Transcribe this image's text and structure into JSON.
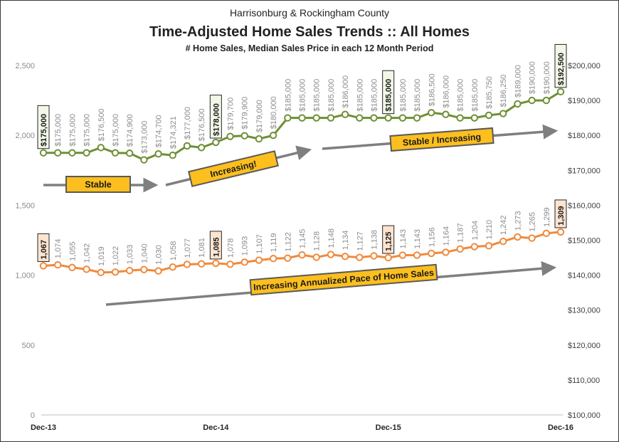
{
  "header": {
    "supertitle": "Harrisonburg & Rockingham County",
    "title": "Time-Adjusted Home Sales Trends  ::  All Homes",
    "subtitle": "# Home Sales, Median Sales Price in each 12 Month Period"
  },
  "chart_data": {
    "type": "line",
    "title": "Time-Adjusted Home Sales Trends  ::  All Homes",
    "subtitle": "# Home Sales, Median Sales Price in each 12 Month Period",
    "x_tick_labels": [
      "Dec-13",
      "Dec-14",
      "Dec-15",
      "Dec-16"
    ],
    "x_tick_index": [
      0,
      12,
      24,
      36
    ],
    "left_axis": {
      "min": 0,
      "max": 2500,
      "ticks": [
        0,
        500,
        1000,
        1500,
        2000,
        2500
      ],
      "tick_labels": [
        "0",
        "500",
        "1,000",
        "1,500",
        "2,000",
        "2,500"
      ]
    },
    "right_axis": {
      "min": 100000,
      "max": 200000,
      "ticks": [
        100000,
        110000,
        120000,
        130000,
        140000,
        150000,
        160000,
        170000,
        180000,
        190000,
        200000
      ],
      "tick_labels": [
        "$100,000",
        "$110,000",
        "$120,000",
        "$130,000",
        "$140,000",
        "$150,000",
        "$160,000",
        "$170,000",
        "$180,000",
        "$190,000",
        "$200,000"
      ]
    },
    "grid": false,
    "series": [
      {
        "axis": "right",
        "color": "#6f8f35",
        "values": [
          175000,
          175000,
          175000,
          175000,
          176500,
          175000,
          174900,
          173000,
          174700,
          174321,
          177000,
          176500,
          178000,
          179700,
          179900,
          179000,
          180000,
          185000,
          185000,
          185000,
          185000,
          186000,
          185000,
          185000,
          185000,
          185000,
          185000,
          186500,
          186000,
          185000,
          185000,
          185750,
          186250,
          189000,
          190000,
          190000,
          192500
        ],
        "labels": [
          "$175,000",
          "$175,000",
          "$175,000",
          "$175,000",
          "$176,500",
          "$175,000",
          "$174,900",
          "$173,000",
          "$174,700",
          "$174,321",
          "$177,000",
          "$176,500",
          "$178,000",
          "$179,700",
          "$179,900",
          "$179,000",
          "$180,000",
          "$185,000",
          "$185,000",
          "$185,000",
          "$185,000",
          "$186,000",
          "$185,000",
          "$185,000",
          "$185,000",
          "$185,000",
          "$185,000",
          "$186,500",
          "$186,000",
          "$185,000",
          "$185,000",
          "$185,750",
          "$186,250",
          "$189,000",
          "$190,000",
          "$190,000",
          "$192,500"
        ],
        "highlight_index": [
          0,
          12,
          24,
          36
        ]
      },
      {
        "axis": "left",
        "color": "#f08a3c",
        "values": [
          1067,
          1074,
          1055,
          1042,
          1019,
          1022,
          1033,
          1040,
          1030,
          1058,
          1077,
          1081,
          1085,
          1078,
          1093,
          1107,
          1119,
          1122,
          1145,
          1128,
          1148,
          1134,
          1127,
          1138,
          1125,
          1143,
          1143,
          1156,
          1164,
          1187,
          1204,
          1210,
          1242,
          1273,
          1265,
          1299,
          1309
        ],
        "labels": [
          "1,067",
          "1,074",
          "1,055",
          "1,042",
          "1,019",
          "1,022",
          "1,033",
          "1,040",
          "1,030",
          "1,058",
          "1,077",
          "1,081",
          "1,085",
          "1,078",
          "1,093",
          "1,107",
          "1,119",
          "1,122",
          "1,145",
          "1,128",
          "1,148",
          "1,134",
          "1,127",
          "1,138",
          "1,125",
          "1,143",
          "1,143",
          "1,156",
          "1,164",
          "1,187",
          "1,204",
          "1,210",
          "1,242",
          "1,273",
          "1,265",
          "1,299",
          "1,309"
        ],
        "highlight_index": [
          0,
          12,
          24,
          36
        ]
      }
    ],
    "annotations": [
      {
        "name": "stable",
        "text": "Stable",
        "series": "price"
      },
      {
        "name": "increasing",
        "text": "Increasing!",
        "series": "price"
      },
      {
        "name": "stable-increasing",
        "text": "Stable / Increasing",
        "series": "price"
      },
      {
        "name": "increasing-pace",
        "text": "Increasing Annualized Pace of Home Sales",
        "series": "sales"
      }
    ],
    "annotation_color": "#fcbf1e"
  }
}
